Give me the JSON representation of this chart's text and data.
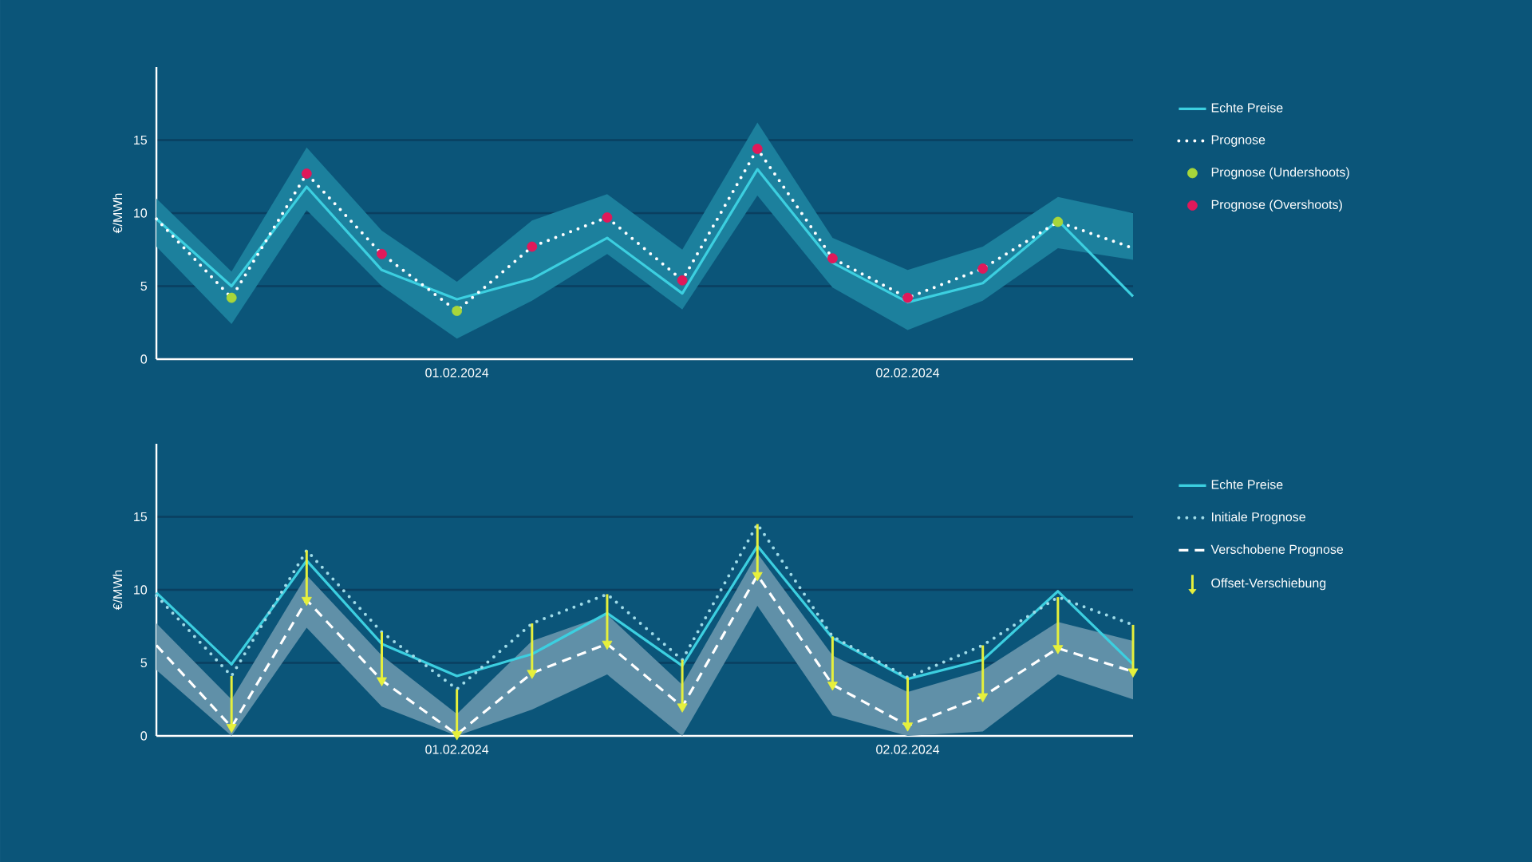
{
  "chart_data": [
    {
      "type": "line",
      "ylabel": "€/MWh",
      "ylim": [
        0,
        20
      ],
      "yticks": [
        0,
        5,
        10,
        15
      ],
      "grid": "y",
      "legend": "right",
      "categories": [
        null,
        null,
        null,
        null,
        "01.02.2024",
        null,
        null,
        null,
        null,
        null,
        "02.02.2024",
        null,
        null,
        null
      ],
      "series": [
        {
          "name": "Echte Preise",
          "type": "line",
          "color": "#3ccfe0",
          "line_style": "solid",
          "values": [
            9.6,
            5.0,
            11.8,
            6.1,
            4.1,
            5.5,
            8.3,
            4.5,
            13.0,
            6.6,
            3.9,
            5.2,
            9.5,
            4.3
          ],
          "lower": [
            7.7,
            2.4,
            10.2,
            5.0,
            1.4,
            4.0,
            7.2,
            3.4,
            11.2,
            4.9,
            2.0,
            4.0,
            7.6,
            6.8
          ],
          "upper": [
            11.0,
            6.0,
            14.5,
            8.8,
            5.3,
            9.5,
            11.3,
            7.5,
            16.2,
            8.3,
            6.1,
            7.7,
            11.1,
            10.0
          ]
        },
        {
          "name": "Prognose",
          "type": "line",
          "color": "#ffffff",
          "line_style": "dotted",
          "values": [
            9.6,
            4.2,
            12.7,
            7.2,
            3.3,
            7.7,
            9.7,
            5.4,
            14.4,
            6.9,
            4.2,
            6.2,
            9.4,
            7.6
          ]
        },
        {
          "name": "Prognose (Undershoots)",
          "type": "scatter",
          "color": "#a8d63a",
          "marker": "circle",
          "values": [
            null,
            4.2,
            null,
            null,
            3.3,
            null,
            null,
            null,
            null,
            null,
            null,
            null,
            9.4,
            null
          ]
        },
        {
          "name": "Prognose (Overshoots)",
          "type": "scatter",
          "color": "#e0195a",
          "marker": "circle",
          "values": [
            null,
            null,
            12.7,
            7.2,
            null,
            7.7,
            9.7,
            5.4,
            14.4,
            6.9,
            4.2,
            6.2,
            null,
            null
          ]
        }
      ]
    },
    {
      "type": "line",
      "ylabel": "€/MWh",
      "ylim": [
        0,
        20
      ],
      "yticks": [
        0,
        5,
        10,
        15
      ],
      "grid": "y",
      "legend": "right",
      "categories": [
        null,
        null,
        null,
        null,
        "01.02.2024",
        null,
        null,
        null,
        null,
        null,
        "02.02.2024",
        null,
        null,
        null
      ],
      "series": [
        {
          "name": "Echte Preise",
          "type": "line",
          "color": "#3ccfe0",
          "line_style": "solid",
          "values": [
            9.8,
            4.9,
            12.0,
            6.3,
            4.1,
            5.6,
            8.4,
            4.8,
            13.0,
            6.7,
            3.9,
            5.2,
            9.9,
            4.9
          ]
        },
        {
          "name": "Initiale Prognose",
          "type": "line",
          "color": "#9fdbe8",
          "line_style": "dotted",
          "values": [
            9.6,
            4.1,
            12.7,
            7.1,
            3.2,
            7.7,
            9.7,
            5.2,
            14.5,
            6.8,
            4.0,
            6.2,
            9.5,
            7.6
          ]
        },
        {
          "name": "Verschobene Prognose",
          "type": "line",
          "color": "#ffffff",
          "line_style": "dashed",
          "values": [
            6.2,
            0.6,
            9.3,
            3.8,
            0.1,
            4.3,
            6.3,
            2.0,
            11.0,
            3.5,
            0.7,
            2.7,
            6.0,
            4.4
          ],
          "lower": [
            4.5,
            0,
            7.4,
            2.0,
            0,
            1.8,
            4.2,
            0,
            8.9,
            1.4,
            0,
            0.3,
            4.2,
            2.5
          ],
          "upper": [
            7.7,
            2.5,
            11.0,
            5.5,
            1.5,
            6.5,
            8.3,
            3.5,
            12.5,
            5.5,
            3.0,
            4.5,
            7.8,
            6.5
          ]
        },
        {
          "name": "Offset-Verschiebung",
          "type": "scatter",
          "color": "#e6f03c",
          "marker": "triangle",
          "values": [
            null,
            0.6,
            9.3,
            3.8,
            0.1,
            4.3,
            6.3,
            2.0,
            11.0,
            3.5,
            0.7,
            2.7,
            6.0,
            4.4
          ],
          "errors": [
            null,
            [
              0.6,
              4.1
            ],
            [
              9.3,
              12.7
            ],
            [
              3.8,
              7.1
            ],
            [
              0.1,
              3.2
            ],
            [
              4.3,
              7.7
            ],
            [
              6.3,
              9.7
            ],
            [
              2.0,
              5.2
            ],
            [
              11.0,
              14.5
            ],
            [
              3.5,
              6.8
            ],
            [
              0.7,
              4.0
            ],
            [
              2.7,
              6.2
            ],
            [
              6.0,
              9.5
            ],
            [
              4.4,
              7.6
            ]
          ]
        }
      ]
    }
  ]
}
